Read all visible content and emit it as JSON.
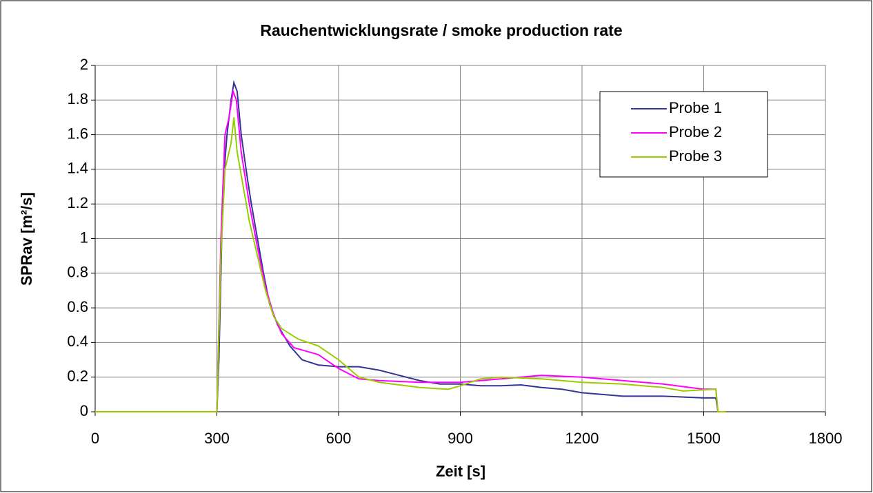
{
  "chart_data": {
    "type": "line",
    "title": "Rauchentwicklungsrate / smoke production rate",
    "x_label": "Zeit [s]",
    "y_label": "SPRav [m²/s]",
    "xlim": [
      0,
      1800
    ],
    "xticks": [
      0,
      300,
      600,
      900,
      1200,
      1500,
      1800
    ],
    "ylim": [
      0,
      2
    ],
    "yticks": [
      0,
      0.2,
      0.4,
      0.6,
      0.8,
      1,
      1.2,
      1.4,
      1.6,
      1.8,
      2
    ],
    "grid": true,
    "legend": "upper right",
    "series": [
      {
        "name": "Probe 1",
        "color": "#333399",
        "x": [
          0,
          300,
          305,
          315,
          325,
          335,
          342,
          350,
          360,
          375,
          385,
          400,
          415,
          430,
          450,
          480,
          510,
          550,
          600,
          650,
          700,
          750,
          800,
          850,
          900,
          950,
          1000,
          1050,
          1100,
          1150,
          1200,
          1250,
          1300,
          1400,
          1450,
          1500,
          1530,
          1535,
          1555
        ],
        "values": [
          0,
          0,
          0.3,
          1.3,
          1.6,
          1.8,
          1.9,
          1.85,
          1.6,
          1.35,
          1.2,
          1.0,
          0.8,
          0.62,
          0.5,
          0.38,
          0.3,
          0.27,
          0.26,
          0.26,
          0.24,
          0.21,
          0.18,
          0.16,
          0.16,
          0.15,
          0.15,
          0.155,
          0.14,
          0.13,
          0.11,
          0.1,
          0.09,
          0.09,
          0.085,
          0.08,
          0.08,
          0,
          0
        ]
      },
      {
        "name": "Probe 2",
        "color": "#ff00ff",
        "x": [
          0,
          300,
          310,
          320,
          330,
          340,
          348,
          360,
          380,
          400,
          420,
          440,
          460,
          490,
          520,
          550,
          600,
          650,
          700,
          800,
          900,
          1000,
          1100,
          1200,
          1300,
          1400,
          1500,
          1530,
          1535,
          1555
        ],
        "values": [
          0,
          0,
          1.0,
          1.6,
          1.7,
          1.85,
          1.8,
          1.5,
          1.2,
          0.95,
          0.72,
          0.56,
          0.45,
          0.37,
          0.35,
          0.33,
          0.25,
          0.19,
          0.18,
          0.17,
          0.17,
          0.19,
          0.21,
          0.2,
          0.18,
          0.16,
          0.13,
          0.13,
          0,
          0
        ]
      },
      {
        "name": "Probe 3",
        "color": "#99cc00",
        "x": [
          0,
          300,
          310,
          320,
          335,
          342,
          350,
          365,
          380,
          400,
          420,
          440,
          460,
          500,
          550,
          600,
          650,
          700,
          800,
          870,
          900,
          950,
          1000,
          1100,
          1200,
          1300,
          1400,
          1450,
          1530,
          1535,
          1555
        ],
        "values": [
          0,
          0,
          0.9,
          1.4,
          1.55,
          1.7,
          1.5,
          1.3,
          1.1,
          0.9,
          0.7,
          0.55,
          0.48,
          0.42,
          0.38,
          0.3,
          0.2,
          0.17,
          0.14,
          0.13,
          0.15,
          0.19,
          0.2,
          0.19,
          0.17,
          0.16,
          0.14,
          0.12,
          0.13,
          0,
          0
        ]
      }
    ]
  }
}
